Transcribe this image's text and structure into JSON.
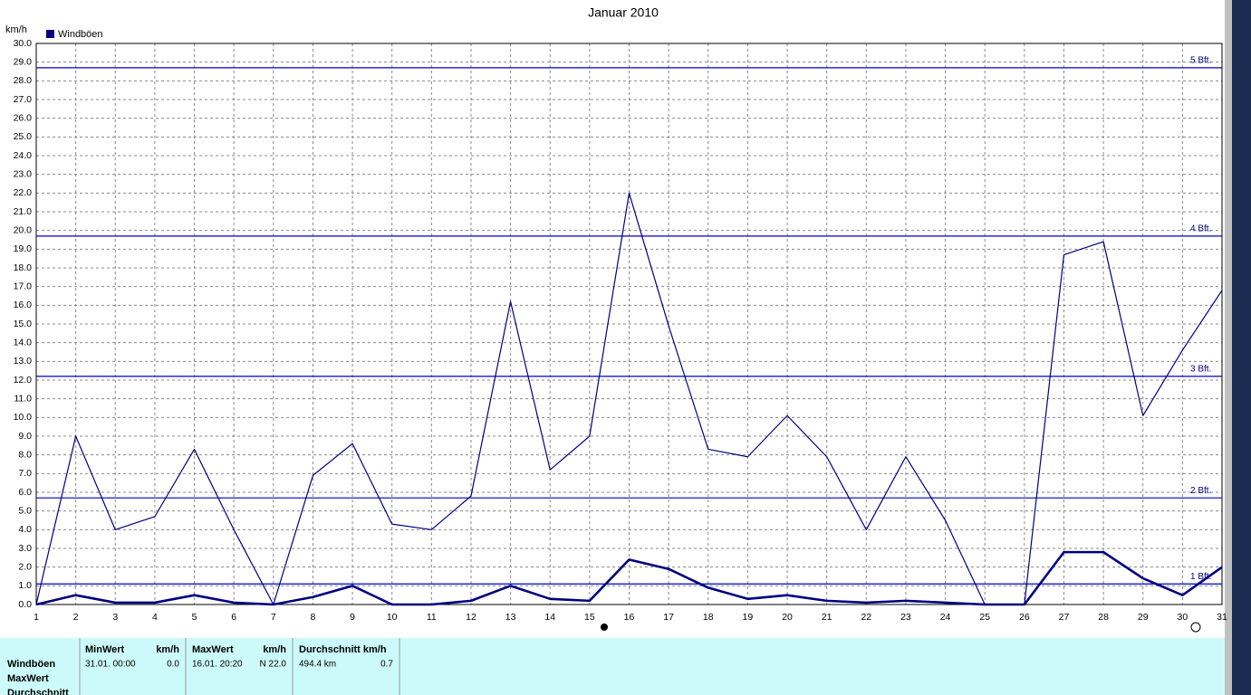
{
  "chart_data": {
    "type": "line",
    "title": "Januar 2010",
    "y_label": "km/h",
    "x": [
      1,
      2,
      3,
      4,
      5,
      6,
      7,
      8,
      9,
      10,
      11,
      12,
      13,
      14,
      15,
      16,
      17,
      18,
      19,
      20,
      21,
      22,
      23,
      24,
      25,
      26,
      27,
      28,
      29,
      30,
      31
    ],
    "series": [
      {
        "name": "Windböen",
        "color": "#000080",
        "values": [
          0.0,
          9.0,
          4.0,
          4.7,
          8.3,
          4.0,
          0.0,
          6.9,
          8.6,
          4.3,
          4.0,
          5.8,
          16.2,
          7.2,
          9.0,
          22.0,
          14.9,
          8.3,
          7.9,
          10.1,
          7.9,
          4.0,
          7.9,
          4.5,
          0.0,
          0.0,
          18.7,
          19.4,
          10.1,
          13.6,
          16.8
        ]
      },
      {
        "color": "#000080",
        "values": [
          0.0,
          0.5,
          0.1,
          0.1,
          0.5,
          0.1,
          0.0,
          0.4,
          1.0,
          0.0,
          0.0,
          0.2,
          1.0,
          0.3,
          0.2,
          2.4,
          1.9,
          0.9,
          0.3,
          0.5,
          0.2,
          0.1,
          0.2,
          0.1,
          0.0,
          0.0,
          2.8,
          2.8,
          1.4,
          0.5,
          2.0
        ]
      }
    ],
    "xlim": [
      1,
      31
    ],
    "xticks": [
      1,
      2,
      3,
      4,
      5,
      6,
      7,
      8,
      9,
      10,
      11,
      12,
      13,
      14,
      15,
      16,
      17,
      18,
      19,
      20,
      21,
      22,
      23,
      24,
      25,
      26,
      27,
      28,
      29,
      30,
      31
    ],
    "ylim": [
      0,
      30
    ],
    "yticks": [
      {
        "value": 0,
        "label": "0.0"
      },
      {
        "value": 1,
        "label": "1.0"
      },
      {
        "value": 2,
        "label": "2.0"
      },
      {
        "value": 3,
        "label": "3.0"
      },
      {
        "value": 4,
        "label": "4.0"
      },
      {
        "value": 5,
        "label": "5.0"
      },
      {
        "value": 6,
        "label": "6.0"
      },
      {
        "value": 7,
        "label": "7.0"
      },
      {
        "value": 8,
        "label": "8.0"
      },
      {
        "value": 9,
        "label": "9.0"
      },
      {
        "value": 10,
        "label": "10.0"
      },
      {
        "value": 11,
        "label": "11.0"
      },
      {
        "value": 12,
        "label": "12.0"
      },
      {
        "value": 13,
        "label": "13.0"
      },
      {
        "value": 14,
        "label": "14.0"
      },
      {
        "value": 15,
        "label": "15.0"
      },
      {
        "value": 16,
        "label": "16.0"
      },
      {
        "value": 17,
        "label": "17.0"
      },
      {
        "value": 18,
        "label": "18.0"
      },
      {
        "value": 19,
        "label": "19.0"
      },
      {
        "value": 20,
        "label": "20.0"
      },
      {
        "value": 21,
        "label": "21.0"
      },
      {
        "value": 22,
        "label": "22.0"
      },
      {
        "value": 23,
        "label": "23.0"
      },
      {
        "value": 24,
        "label": "24.0"
      },
      {
        "value": 25,
        "label": "25.0"
      },
      {
        "value": 26,
        "label": "26.0"
      },
      {
        "value": 27,
        "label": "27.0"
      },
      {
        "value": 28,
        "label": "28.0"
      },
      {
        "value": 29,
        "label": "29.0"
      },
      {
        "value": 30,
        "label": "30.0"
      }
    ],
    "grid": true,
    "reference_lines": [
      {
        "label": "1 Bft.",
        "value": 1.1
      },
      {
        "label": "2 Bft.",
        "value": 5.7
      },
      {
        "label": "3 Bft.",
        "value": 12.2
      },
      {
        "label": "4 Bft.",
        "value": 19.7
      },
      {
        "label": "5 Bft.",
        "value": 28.7
      }
    ]
  },
  "summary_table": {
    "headers": [
      [
        "MinWert",
        "km/h"
      ],
      [
        "MaxWert",
        "km/h"
      ],
      [
        "Durchschnitt km/h"
      ]
    ],
    "row_labels": [
      "Windböen",
      "MaxWert",
      "Durchschnitt"
    ],
    "cells": [
      [
        "31.01.  00:00",
        "0.0"
      ],
      [
        "16.01.  20:20",
        "N 22.0"
      ],
      [
        "494.4 km",
        "0.7"
      ]
    ]
  }
}
